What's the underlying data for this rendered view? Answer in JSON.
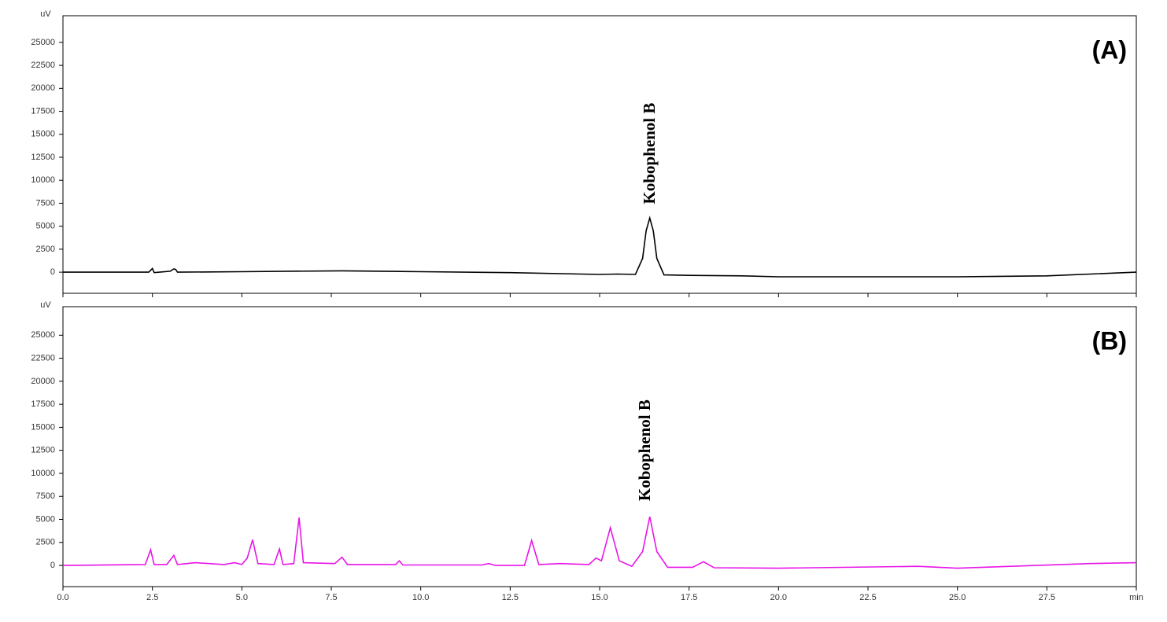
{
  "chart_data": [
    {
      "type": "line",
      "title": "(A)",
      "y_label": "uV",
      "color": "#000000",
      "x": [
        0,
        2.4,
        2.5,
        2.55,
        2.7,
        3.0,
        3.1,
        3.15,
        3.2,
        5,
        7.8,
        10,
        12.5,
        15,
        15.5,
        16.0,
        16.2,
        16.3,
        16.4,
        16.5,
        16.6,
        16.8,
        17.5,
        19,
        20,
        25,
        27.5,
        30
      ],
      "values": [
        0,
        0,
        400,
        -50,
        0,
        100,
        350,
        300,
        0,
        50,
        150,
        50,
        -50,
        -250,
        -200,
        -250,
        1500,
        4500,
        5900,
        4500,
        1500,
        -300,
        -350,
        -400,
        -500,
        -500,
        -400,
        0
      ],
      "xlim": [
        0,
        30
      ],
      "ylim": [
        -2300,
        27900
      ],
      "yticks": [
        0,
        2500,
        5000,
        7500,
        10000,
        12500,
        15000,
        17500,
        20000,
        22500,
        25000
      ],
      "annotations": [
        {
          "text": "Kobophenol B",
          "x": 16.43,
          "y": 7400
        }
      ]
    },
    {
      "type": "line",
      "title": "(B)",
      "y_label": "uV",
      "color": "#e815e8",
      "x": [
        0,
        2.3,
        2.45,
        2.55,
        2.9,
        3.1,
        3.2,
        3.7,
        4.5,
        4.8,
        5.0,
        5.15,
        5.3,
        5.45,
        5.9,
        6.05,
        6.15,
        6.45,
        6.6,
        6.72,
        7.6,
        7.8,
        7.95,
        9.3,
        9.4,
        9.5,
        11.7,
        11.9,
        12.1,
        12.9,
        13.1,
        13.3,
        13.9,
        14.7,
        14.9,
        15.05,
        15.3,
        15.55,
        15.9,
        16.2,
        16.4,
        16.6,
        16.9,
        17.6,
        17.9,
        18.2,
        20,
        23.9,
        25,
        28.7,
        30
      ],
      "values": [
        0,
        100,
        1700,
        100,
        100,
        1100,
        100,
        300,
        100,
        300,
        100,
        800,
        2800,
        200,
        100,
        1800,
        100,
        200,
        5200,
        300,
        200,
        900,
        100,
        100,
        500,
        50,
        50,
        200,
        0,
        0,
        2700,
        100,
        200,
        100,
        800,
        500,
        4100,
        500,
        -100,
        1500,
        5300,
        1500,
        -200,
        -200,
        400,
        -250,
        -300,
        -100,
        -300,
        200,
        300
      ],
      "xlim": [
        0,
        30
      ],
      "ylim": [
        -2300,
        28100
      ],
      "yticks": [
        0,
        2500,
        5000,
        7500,
        10000,
        12500,
        15000,
        17500,
        20000,
        22500,
        25000
      ],
      "xticks": [
        {
          "value": 0,
          "label": "0.0"
        },
        {
          "value": 2.5,
          "label": "2.5"
        },
        {
          "value": 5,
          "label": "5.0"
        },
        {
          "value": 7.5,
          "label": "7.5"
        },
        {
          "value": 10,
          "label": "10.0"
        },
        {
          "value": 12.5,
          "label": "12.5"
        },
        {
          "value": 15,
          "label": "15.0"
        },
        {
          "value": 17.5,
          "label": "17.5"
        },
        {
          "value": 20,
          "label": "20.0"
        },
        {
          "value": 22.5,
          "label": "22.5"
        },
        {
          "value": 25,
          "label": "25.0"
        },
        {
          "value": 27.5,
          "label": "27.5"
        },
        {
          "value": 30,
          "label": "min"
        }
      ],
      "annotations": [
        {
          "text": "Kobophenol B",
          "x": 16.3,
          "y": 7000
        }
      ]
    }
  ]
}
